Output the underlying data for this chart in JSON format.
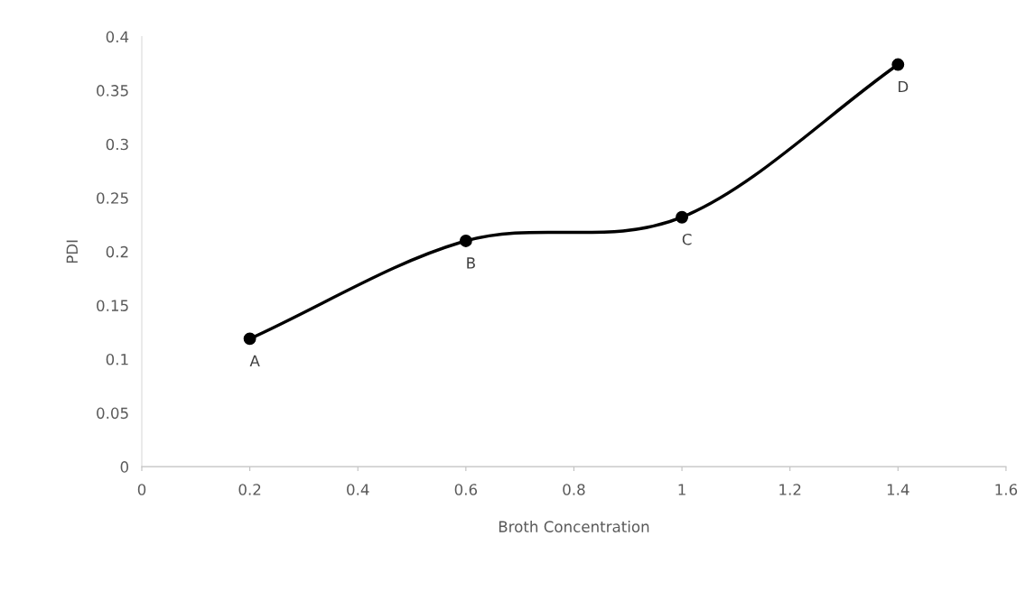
{
  "chart_data": {
    "type": "line",
    "xlabel": "Broth Concentration",
    "ylabel": "PDI",
    "x": [
      0.2,
      0.6,
      1,
      1.4
    ],
    "series": [
      {
        "color": "#000000",
        "values": [
          0.119,
          0.21,
          0.232,
          0.374
        ]
      }
    ],
    "marker": "circle",
    "grid": false,
    "xlim": [
      0,
      1.6
    ],
    "xticks": [
      0,
      0.2,
      0.4,
      0.6,
      0.8,
      1,
      1.2,
      1.4,
      1.6
    ],
    "ylim": [
      0,
      0.4
    ],
    "yticks": [
      0,
      0.05,
      0.1,
      0.15,
      0.2,
      0.25,
      0.3,
      0.35,
      0.4
    ],
    "annotations": [
      {
        "text": "A",
        "x": 0.2,
        "y": 0.119
      },
      {
        "text": "B",
        "x": 0.6,
        "y": 0.21
      },
      {
        "text": "C",
        "x": 1,
        "y": 0.232
      },
      {
        "text": "D",
        "x": 1.4,
        "y": 0.374
      }
    ]
  }
}
